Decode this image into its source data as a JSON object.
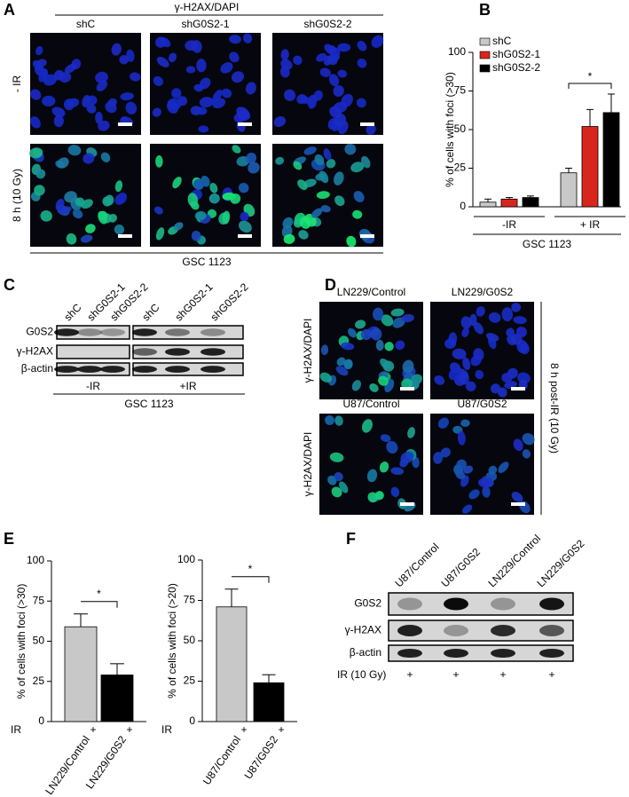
{
  "panel_labels": [
    "A",
    "B",
    "C",
    "D",
    "E",
    "F"
  ],
  "panel_a": {
    "header": "γ-H2AX/DAPI",
    "columns": [
      "shC",
      "shG0S2-1",
      "shG0S2-2"
    ],
    "rows": [
      "- IR",
      "8 h (10 Gy)"
    ],
    "footer": "GSC 1123"
  },
  "panel_c": {
    "lanes": [
      "shC",
      "shG0S2-1",
      "shG0S2-2",
      "shC",
      "shG0S2-1",
      "shG0S2-2"
    ],
    "rows": [
      "G0S2",
      "γ-H2AX",
      "β-actin"
    ],
    "groups": [
      "-IR",
      "+IR"
    ],
    "footer": "GSC 1123"
  },
  "panel_d": {
    "columns": [
      "LN229/Control",
      "LN229/G0S2",
      "U87/Control",
      "U87/G0S2"
    ],
    "rows": [
      "γ-H2AX/DAPI",
      "γ-H2AX/DAPI"
    ],
    "side_label": "8 h post-IR (10 Gy)"
  },
  "panel_f": {
    "lanes": [
      "U87/Control",
      "U87/G0S2",
      "LN229/Control",
      "LN229/G0S2"
    ],
    "rows": [
      "G0S2",
      "γ-H2AX",
      "β-actin"
    ],
    "condition_label": "IR (10 Gy)",
    "condition_values": [
      "+",
      "+",
      "+",
      "+"
    ]
  },
  "chart_data": [
    {
      "type": "bar",
      "ylabel": "% of cells with foci (>30)",
      "xlabel": "GSC 1123",
      "categories": [
        "-IR",
        "+ IR"
      ],
      "series": [
        {
          "name": "shC",
          "color": "#c8c8c8",
          "values": [
            3,
            22
          ],
          "errors": [
            2,
            3
          ]
        },
        {
          "name": "shG0S2-1",
          "color": "#d9261c",
          "values": [
            5,
            52
          ],
          "errors": [
            1,
            11
          ]
        },
        {
          "name": "shG0S2-2",
          "color": "#000000",
          "values": [
            6,
            61
          ],
          "errors": [
            1,
            12
          ]
        }
      ],
      "ylim": [
        0,
        100
      ],
      "yticks": [
        0,
        25,
        50,
        75,
        100
      ],
      "annotation": "*"
    },
    {
      "type": "bar",
      "ylabel": "% of cells with foci (>30)",
      "categories": [
        "LN229/Control",
        "LN229/G0S2"
      ],
      "values": [
        59,
        29
      ],
      "errors": [
        8,
        7
      ],
      "colors": [
        "#c8c8c8",
        "#000000"
      ],
      "ylim": [
        0,
        100
      ],
      "yticks": [
        0,
        25,
        50,
        75,
        100
      ],
      "annotation": "*",
      "condition_label": "IR",
      "condition_values": [
        "+",
        "+"
      ]
    },
    {
      "type": "bar",
      "ylabel": "% of cells with foci (>20)",
      "categories": [
        "U87/Control",
        "U87/G0S2"
      ],
      "values": [
        71,
        24
      ],
      "errors": [
        11,
        5
      ],
      "colors": [
        "#c8c8c8",
        "#000000"
      ],
      "ylim": [
        0,
        100
      ],
      "yticks": [
        0,
        25,
        50,
        75,
        100
      ],
      "annotation": "*",
      "condition_label": "IR",
      "condition_values": [
        "+",
        "+"
      ]
    }
  ]
}
